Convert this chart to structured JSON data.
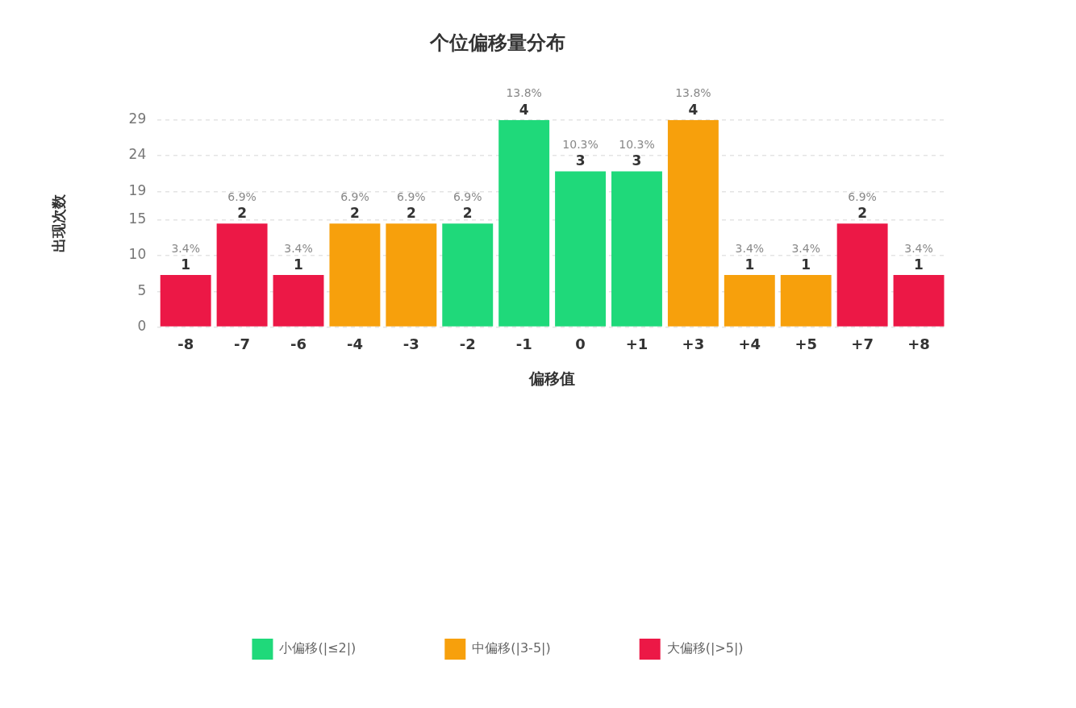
{
  "chart_data": {
    "type": "bar",
    "title": "个位偏移量分布",
    "xlabel": "偏移值",
    "ylabel": "出现次数",
    "categories": [
      "-8",
      "-7",
      "-6",
      "-4",
      "-3",
      "-2",
      "-1",
      "0",
      "+1",
      "+3",
      "+4",
      "+5",
      "+7",
      "+8"
    ],
    "series": [
      {
        "name": "小偏移(|≤2|)",
        "color": "#1fd97a",
        "values": [
          null,
          null,
          null,
          null,
          null,
          14.5,
          29,
          21.8,
          21.8,
          null,
          null,
          null,
          null,
          null
        ]
      },
      {
        "name": "中偏移(|3-5|)",
        "color": "#f7a00c",
        "values": [
          null,
          null,
          null,
          14.5,
          14.5,
          null,
          null,
          null,
          null,
          29,
          7.3,
          7.3,
          null,
          null
        ]
      },
      {
        "name": "大偏移(|>5|)",
        "color": "#ec1846",
        "values": [
          7.3,
          14.5,
          7.3,
          null,
          null,
          null,
          null,
          null,
          null,
          null,
          null,
          null,
          14.5,
          7.3
        ]
      }
    ],
    "stacked": true,
    "ylim": [
      0,
      29
    ],
    "yticks": [
      0,
      5,
      10,
      15,
      19,
      24,
      29
    ],
    "grid": "y",
    "legend": "bottom",
    "annotations": [
      {
        "text": "3.4%",
        "x": "-8",
        "y": 7.3
      },
      {
        "text": "6.9%",
        "x": "-7",
        "y": 14.5
      },
      {
        "text": "3.4%",
        "x": "-6",
        "y": 7.3
      },
      {
        "text": "6.9%",
        "x": "-4",
        "y": 14.5
      },
      {
        "text": "6.9%",
        "x": "-3",
        "y": 14.5
      },
      {
        "text": "6.9%",
        "x": "-2",
        "y": 14.5
      },
      {
        "text": "13.8%",
        "x": "-1",
        "y": 29
      },
      {
        "text": "10.3%",
        "x": "0",
        "y": 21.8
      },
      {
        "text": "10.3%",
        "x": "+1",
        "y": 21.8
      },
      {
        "text": "13.8%",
        "x": "+3",
        "y": 29
      },
      {
        "text": "3.4%",
        "x": "+4",
        "y": 7.3
      },
      {
        "text": "3.4%",
        "x": "+5",
        "y": 7.3
      },
      {
        "text": "6.9%",
        "x": "+7",
        "y": 14.5
      },
      {
        "text": "3.4%",
        "x": "+8",
        "y": 7.3
      },
      {
        "text": "1",
        "x": "-8",
        "y": 7.3
      },
      {
        "text": "2",
        "x": "-7",
        "y": 14.5
      },
      {
        "text": "1",
        "x": "-6",
        "y": 7.3
      },
      {
        "text": "2",
        "x": "-4",
        "y": 14.5
      },
      {
        "text": "2",
        "x": "-3",
        "y": 14.5
      },
      {
        "text": "2",
        "x": "-2",
        "y": 14.5
      },
      {
        "text": "4",
        "x": "-1",
        "y": 29
      },
      {
        "text": "3",
        "x": "0",
        "y": 21.8
      },
      {
        "text": "3",
        "x": "+1",
        "y": 21.8
      },
      {
        "text": "4",
        "x": "+3",
        "y": 29
      },
      {
        "text": "1",
        "x": "+4",
        "y": 7.3
      },
      {
        "text": "1",
        "x": "+5",
        "y": 7.3
      },
      {
        "text": "2",
        "x": "+7",
        "y": 14.5
      },
      {
        "text": "1",
        "x": "+8",
        "y": 7.3
      }
    ]
  }
}
